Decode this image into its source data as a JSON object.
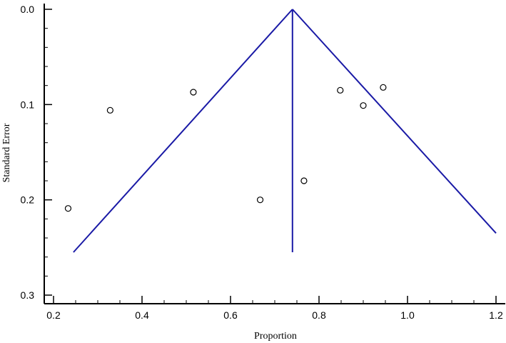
{
  "chart_data": {
    "type": "scatter",
    "title": "",
    "xlabel": "Proportion",
    "ylabel": "Standard Error",
    "xlim": [
      0.18,
      1.22
    ],
    "ylim": [
      0.0,
      0.3
    ],
    "y_inverted": true,
    "x_ticks": [
      0.2,
      0.4,
      0.6,
      0.8,
      1.0,
      1.2
    ],
    "x_tick_labels": [
      "0.2",
      "0.4",
      "0.6",
      "0.8",
      "1.0",
      "1.2"
    ],
    "y_ticks": [
      0.0,
      0.1,
      0.2,
      0.3
    ],
    "y_tick_labels": [
      "0.0",
      "0.1",
      "0.2",
      "0.3"
    ],
    "grid": false,
    "points": [
      {
        "x": 0.233,
        "y": 0.209
      },
      {
        "x": 0.328,
        "y": 0.106
      },
      {
        "x": 0.516,
        "y": 0.087
      },
      {
        "x": 0.667,
        "y": 0.2
      },
      {
        "x": 0.766,
        "y": 0.18
      },
      {
        "x": 0.848,
        "y": 0.085
      },
      {
        "x": 0.9,
        "y": 0.101
      },
      {
        "x": 0.945,
        "y": 0.082
      }
    ],
    "pooled_estimate": 0.74,
    "funnel": {
      "apex": {
        "x": 0.74,
        "y": 0.0
      },
      "left_end": {
        "x": 0.245,
        "y": 0.255
      },
      "right_end": {
        "x": 1.2,
        "y": 0.235
      },
      "center_bottom": {
        "x": 0.74,
        "y": 0.255
      }
    },
    "line_color": "#1a1aa6",
    "marker_color": "#000000",
    "ylabel_color": "#8b0000"
  }
}
